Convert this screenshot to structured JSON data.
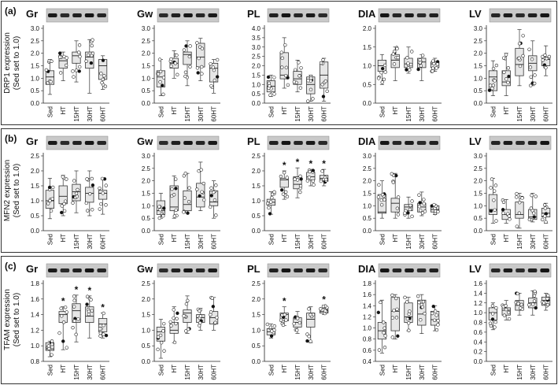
{
  "figure": {
    "rows": [
      {
        "letter": "(a)",
        "ylabel_line1": "DRP1 expression",
        "ylabel_line2": "(Sed set to 1.0)"
      },
      {
        "letter": "(b)",
        "ylabel_line1": "MFN2 expression",
        "ylabel_line2": "(Sed set to 1.0)"
      },
      {
        "letter": "(c)",
        "ylabel_line1": "TFAM expression",
        "ylabel_line2": "(Sed set to 1.0)"
      }
    ]
  },
  "chart_data": [
    {
      "type": "box",
      "row": "a",
      "title": "Gr",
      "categories": [
        "Sed",
        "HT",
        "15HT",
        "30HT",
        "60HT"
      ],
      "ylim": [
        0,
        3
      ],
      "yticks": [
        "0.0",
        "0.5",
        "1.0",
        "1.5",
        "2.0",
        "2.5",
        "3.0"
      ],
      "boxes": [
        [
          0.35,
          0.75,
          1.05,
          1.3,
          1.75
        ],
        [
          0.9,
          1.4,
          1.7,
          1.85,
          2.05
        ],
        [
          0.85,
          1.6,
          1.9,
          2.05,
          2.5
        ],
        [
          0.4,
          1.4,
          1.85,
          2.05,
          2.55
        ],
        [
          0.55,
          0.95,
          1.5,
          1.75,
          1.9
        ]
      ],
      "significant": [
        false,
        false,
        false,
        false,
        false
      ]
    },
    {
      "type": "box",
      "row": "a",
      "title": "Gw",
      "categories": [
        "Sed",
        "HT",
        "15HT",
        "30HT",
        "60HT"
      ],
      "ylim": [
        0,
        3
      ],
      "yticks": [
        "0.0",
        "0.5",
        "1.0",
        "1.5",
        "2.0",
        "2.5",
        "3.0"
      ],
      "boxes": [
        [
          0.3,
          0.65,
          1.05,
          1.3,
          1.75
        ],
        [
          1.0,
          1.4,
          1.6,
          1.8,
          2.1
        ],
        [
          0.7,
          1.55,
          1.95,
          2.05,
          2.5
        ],
        [
          0.9,
          1.45,
          1.85,
          2.4,
          2.6
        ],
        [
          0.4,
          0.85,
          1.4,
          1.6,
          1.75
        ]
      ],
      "significant": [
        false,
        false,
        false,
        false,
        false
      ]
    },
    {
      "type": "box",
      "row": "a",
      "title": "PL",
      "categories": [
        "Sed",
        "HT",
        "15HT",
        "30HT",
        "60HT"
      ],
      "ylim": [
        0,
        4
      ],
      "yticks": [
        "0.0",
        "0.5",
        "1.0",
        "1.5",
        "2.0",
        "2.5",
        "3.0",
        "3.5",
        "4.0"
      ],
      "boxes": [
        [
          0.35,
          0.6,
          0.9,
          1.2,
          1.5
        ],
        [
          0.8,
          1.3,
          1.5,
          2.7,
          3.5
        ],
        [
          0.6,
          1.0,
          1.3,
          1.7,
          2.3
        ],
        [
          0.1,
          0.5,
          1.0,
          1.4,
          1.5
        ],
        [
          0.1,
          0.8,
          1.5,
          2.2,
          2.4
        ]
      ],
      "significant": [
        false,
        false,
        false,
        false,
        false
      ]
    },
    {
      "type": "box",
      "row": "a",
      "title": "DIA",
      "categories": [
        "Sed",
        "HT",
        "15HT",
        "30HT",
        "60HT"
      ],
      "ylim": [
        0,
        2
      ],
      "yticks": [
        "0.0",
        "0.5",
        "1.0",
        "1.5",
        "2.0"
      ],
      "boxes": [
        [
          0.5,
          0.85,
          1.0,
          1.15,
          1.3
        ],
        [
          0.6,
          0.95,
          1.15,
          1.3,
          1.5
        ],
        [
          0.8,
          0.95,
          1.05,
          1.2,
          1.5
        ],
        [
          0.6,
          0.95,
          1.1,
          1.2,
          1.3
        ],
        [
          0.85,
          0.95,
          1.05,
          1.1,
          1.2
        ]
      ],
      "significant": [
        false,
        false,
        false,
        false,
        false
      ]
    },
    {
      "type": "box",
      "row": "a",
      "title": "LV",
      "categories": [
        "Sed",
        "HT",
        "15HT",
        "30HT",
        "60HT"
      ],
      "ylim": [
        0,
        3
      ],
      "yticks": [
        "0.0",
        "0.5",
        "1.0",
        "1.5",
        "2.0",
        "2.5",
        "3.0"
      ],
      "boxes": [
        [
          0.3,
          0.5,
          1.05,
          1.3,
          1.7
        ],
        [
          0.3,
          0.7,
          0.85,
          1.3,
          2.0
        ],
        [
          0.7,
          1.1,
          1.55,
          2.2,
          2.95
        ],
        [
          0.7,
          1.3,
          1.6,
          1.9,
          2.5
        ],
        [
          1.1,
          1.5,
          1.75,
          1.85,
          2.3
        ]
      ],
      "significant": [
        false,
        false,
        false,
        false,
        false
      ]
    },
    {
      "type": "box",
      "row": "b",
      "title": "Gr",
      "categories": [
        "Sed",
        "HT",
        "15HT",
        "30HT",
        "60HT"
      ],
      "ylim": [
        0,
        2.5
      ],
      "yticks": [
        "0.0",
        "0.5",
        "1.0",
        "1.5",
        "2.0",
        "2.5"
      ],
      "boxes": [
        [
          0.4,
          0.75,
          1.0,
          1.35,
          1.75
        ],
        [
          0.5,
          0.9,
          1.15,
          1.5,
          1.85
        ],
        [
          0.6,
          1.0,
          1.3,
          1.55,
          2.0
        ],
        [
          0.5,
          0.95,
          1.25,
          1.45,
          2.0
        ],
        [
          0.55,
          1.05,
          1.25,
          1.35,
          1.75
        ]
      ],
      "significant": [
        false,
        false,
        false,
        false,
        false
      ]
    },
    {
      "type": "box",
      "row": "b",
      "title": "Gw",
      "categories": [
        "Sed",
        "HT",
        "15HT",
        "30HT",
        "60HT"
      ],
      "ylim": [
        0,
        3
      ],
      "yticks": [
        "0.0",
        "0.5",
        "1.0",
        "1.5",
        "2.0",
        "2.5",
        "3.0"
      ],
      "boxes": [
        [
          0.5,
          0.65,
          0.8,
          1.2,
          1.5
        ],
        [
          0.5,
          0.8,
          0.95,
          1.8,
          2.2
        ],
        [
          0.7,
          0.8,
          1.05,
          1.6,
          2.3
        ],
        [
          0.8,
          0.95,
          1.35,
          1.9,
          2.75
        ],
        [
          0.5,
          1.0,
          1.15,
          1.6,
          2.0
        ]
      ],
      "significant": [
        false,
        false,
        false,
        false,
        false
      ]
    },
    {
      "type": "box",
      "row": "b",
      "title": "PL",
      "categories": [
        "Sed",
        "HT",
        "15HT",
        "30HT",
        "60HT"
      ],
      "ylim": [
        0,
        2.5
      ],
      "yticks": [
        "0.0",
        "0.5",
        "1.0",
        "1.5",
        "2.0",
        "2.5"
      ],
      "boxes": [
        [
          0.55,
          0.85,
          0.95,
          1.05,
          1.3
        ],
        [
          1.05,
          1.45,
          1.7,
          1.75,
          2.0
        ],
        [
          1.1,
          1.4,
          1.55,
          1.8,
          2.1
        ],
        [
          1.5,
          1.7,
          1.8,
          1.95,
          2.05
        ],
        [
          1.5,
          1.65,
          1.75,
          1.85,
          2.05
        ]
      ],
      "significant": [
        false,
        true,
        true,
        true,
        true
      ]
    },
    {
      "type": "box",
      "row": "b",
      "title": "DIA",
      "categories": [
        "Sed",
        "HT",
        "15HT",
        "30HT",
        "60HT"
      ],
      "ylim": [
        0,
        3
      ],
      "yticks": [
        "0.0",
        "0.5",
        "1.0",
        "1.5",
        "2.0",
        "2.5",
        "3.0"
      ],
      "boxes": [
        [
          0.5,
          0.7,
          0.75,
          1.45,
          2.0
        ],
        [
          0.5,
          0.75,
          1.1,
          1.3,
          2.3
        ],
        [
          0.5,
          0.8,
          0.95,
          1.05,
          1.35
        ],
        [
          0.6,
          0.75,
          0.95,
          1.1,
          1.55
        ],
        [
          0.65,
          0.75,
          0.85,
          1.0,
          1.05
        ]
      ],
      "significant": [
        false,
        false,
        false,
        false,
        false
      ]
    },
    {
      "type": "box",
      "row": "b",
      "title": "LV",
      "categories": [
        "Sed",
        "HT",
        "15HT",
        "30HT",
        "60HT"
      ],
      "ylim": [
        0,
        3
      ],
      "yticks": [
        "0.0",
        "0.5",
        "1.0",
        "1.5",
        "2.0",
        "2.5",
        "3.0"
      ],
      "boxes": [
        [
          0.3,
          0.65,
          0.85,
          1.45,
          2.1
        ],
        [
          0.3,
          0.45,
          0.65,
          0.85,
          1.25
        ],
        [
          0.1,
          0.5,
          0.65,
          1.15,
          1.5
        ],
        [
          0.35,
          0.45,
          0.55,
          0.85,
          1.5
        ],
        [
          0.3,
          0.55,
          0.7,
          0.9,
          1.1
        ]
      ],
      "significant": [
        false,
        false,
        false,
        false,
        false
      ]
    },
    {
      "type": "box",
      "row": "c",
      "title": "Gr",
      "categories": [
        "Sed",
        "HT",
        "15HT",
        "30HT",
        "60HT"
      ],
      "ylim": [
        0.8,
        1.8
      ],
      "yticks": [
        "0.8",
        "1.0",
        "1.2",
        "1.4",
        "1.6",
        "1.8"
      ],
      "boxes": [
        [
          0.86,
          0.94,
          0.96,
          1.04,
          1.06
        ],
        [
          0.95,
          1.3,
          1.4,
          1.44,
          1.5
        ],
        [
          1.05,
          1.3,
          1.45,
          1.54,
          1.65
        ],
        [
          1.1,
          1.3,
          1.38,
          1.5,
          1.64
        ],
        [
          1.1,
          1.18,
          1.28,
          1.35,
          1.42
        ]
      ],
      "significant": [
        false,
        true,
        true,
        true,
        true
      ]
    },
    {
      "type": "box",
      "row": "c",
      "title": "Gw",
      "categories": [
        "Sed",
        "HT",
        "15HT",
        "30HT",
        "60HT"
      ],
      "ylim": [
        0,
        2.5
      ],
      "yticks": [
        "0.0",
        "0.5",
        "1.0",
        "1.5",
        "2.0",
        "2.5"
      ],
      "boxes": [
        [
          0.1,
          0.65,
          0.95,
          1.1,
          1.35
        ],
        [
          0.6,
          0.9,
          1.0,
          1.25,
          1.75
        ],
        [
          0.9,
          1.25,
          1.55,
          1.65,
          2.1
        ],
        [
          1.0,
          1.25,
          1.4,
          1.5,
          1.7
        ],
        [
          1.0,
          1.2,
          1.4,
          1.6,
          2.05
        ]
      ],
      "significant": [
        false,
        false,
        false,
        false,
        false
      ]
    },
    {
      "type": "box",
      "row": "c",
      "title": "PL",
      "categories": [
        "Sed",
        "HT",
        "15HT",
        "30HT",
        "60HT"
      ],
      "ylim": [
        0,
        2.5
      ],
      "yticks": [
        "0.0",
        "0.5",
        "1.0",
        "1.5",
        "2.0",
        "2.5"
      ],
      "boxes": [
        [
          0.75,
          0.85,
          0.95,
          1.05,
          1.2
        ],
        [
          1.15,
          1.3,
          1.5,
          1.55,
          1.75
        ],
        [
          0.9,
          1.1,
          1.25,
          1.4,
          1.6
        ],
        [
          0.6,
          1.1,
          1.35,
          1.55,
          1.75
        ],
        [
          1.5,
          1.55,
          1.6,
          1.7,
          1.8
        ]
      ],
      "significant": [
        false,
        true,
        false,
        false,
        true
      ]
    },
    {
      "type": "box",
      "row": "c",
      "title": "DIA",
      "categories": [
        "Sed",
        "HT",
        "15HT",
        "30HT",
        "60HT"
      ],
      "ylim": [
        0.4,
        1.8
      ],
      "yticks": [
        "0.4",
        "0.6",
        "0.8",
        "1.0",
        "1.2",
        "1.4",
        "1.6",
        "1.8"
      ],
      "boxes": [
        [
          0.55,
          0.8,
          0.95,
          1.1,
          1.5
        ],
        [
          0.8,
          0.95,
          1.3,
          1.55,
          1.6
        ],
        [
          0.95,
          1.1,
          1.2,
          1.45,
          1.55
        ],
        [
          0.9,
          1.05,
          1.25,
          1.5,
          1.6
        ],
        [
          0.95,
          1.05,
          1.15,
          1.3,
          1.4
        ]
      ],
      "significant": [
        false,
        false,
        false,
        false,
        false
      ]
    },
    {
      "type": "box",
      "row": "c",
      "title": "LV",
      "categories": [
        "Sed",
        "HT",
        "15HT",
        "30HT",
        "60HT"
      ],
      "ylim": [
        0,
        1.6
      ],
      "yticks": [
        "0.0",
        "0.2",
        "0.4",
        "0.6",
        "0.8",
        "1.0",
        "1.2",
        "1.4",
        "1.6"
      ],
      "boxes": [
        [
          0.65,
          0.85,
          1.0,
          1.1,
          1.2
        ],
        [
          0.85,
          0.95,
          1.05,
          1.1,
          1.25
        ],
        [
          0.95,
          1.05,
          1.15,
          1.25,
          1.4
        ],
        [
          0.95,
          1.1,
          1.2,
          1.3,
          1.45
        ],
        [
          1.05,
          1.15,
          1.25,
          1.32,
          1.4
        ]
      ],
      "significant": [
        false,
        false,
        false,
        false,
        false
      ]
    }
  ]
}
